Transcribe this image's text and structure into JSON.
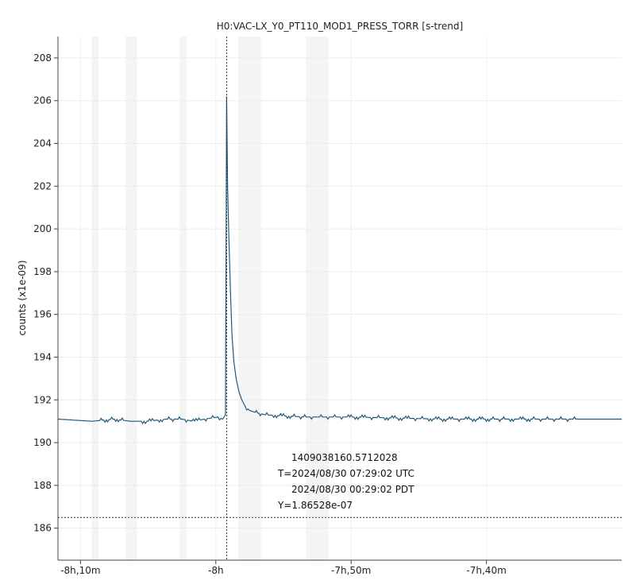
{
  "chart_data": {
    "type": "line",
    "title": "H0:VAC-LX_Y0_PT110_MOD1_PRESS_TORR [s-trend]",
    "ylabel": "counts (x1e-09)",
    "xlabel": "",
    "xlim_seconds": [
      -29500,
      -27000
    ],
    "ylim": [
      184.5,
      209
    ],
    "x_ticks": [
      {
        "value": -29400,
        "label": "-8h,10m"
      },
      {
        "value": -28800,
        "label": "-8h"
      },
      {
        "value": -28200,
        "label": "-7h,50m"
      },
      {
        "value": -27600,
        "label": "-7h,40m"
      }
    ],
    "y_ticks": [
      186,
      188,
      190,
      192,
      194,
      196,
      198,
      200,
      202,
      204,
      206,
      208
    ],
    "grid": true,
    "series": [
      {
        "color": "#1f5a7a",
        "points": [
          [
            -29500,
            191.1
          ],
          [
            -29350,
            191.0
          ],
          [
            -29250,
            191.1
          ],
          [
            -29180,
            191.0
          ],
          [
            -29100,
            191.0
          ],
          [
            -29020,
            191.1
          ],
          [
            -28950,
            191.1
          ],
          [
            -28900,
            191.0
          ],
          [
            -28850,
            191.1
          ],
          [
            -28790,
            191.2
          ],
          [
            -28770,
            191.1
          ],
          [
            -28757,
            191.3
          ],
          [
            -28752,
            206.2
          ],
          [
            -28748,
            202.0
          ],
          [
            -28742,
            199.5
          ],
          [
            -28735,
            197.0
          ],
          [
            -28728,
            195.0
          ],
          [
            -28720,
            193.8
          ],
          [
            -28710,
            193.0
          ],
          [
            -28698,
            192.4
          ],
          [
            -28685,
            192.0
          ],
          [
            -28670,
            191.7
          ],
          [
            -28650,
            191.5
          ],
          [
            -28620,
            191.4
          ],
          [
            -28580,
            191.3
          ],
          [
            -28500,
            191.25
          ],
          [
            -28400,
            191.2
          ],
          [
            -28200,
            191.2
          ],
          [
            -28000,
            191.15
          ],
          [
            -27800,
            191.1
          ],
          [
            -27600,
            191.1
          ],
          [
            -27500,
            191.1
          ],
          [
            -27450,
            191.1
          ],
          [
            -27000,
            191.1
          ]
        ]
      }
    ],
    "cursor": {
      "x": -28752,
      "y": 186.5,
      "gps": "1409038160.5712028",
      "utc_line": "T=2024/08/30 07:29:02 UTC",
      "pdt_line": "2024/08/30 00:29:02 PDT",
      "y_line": "Y=1.86528e-07"
    }
  }
}
